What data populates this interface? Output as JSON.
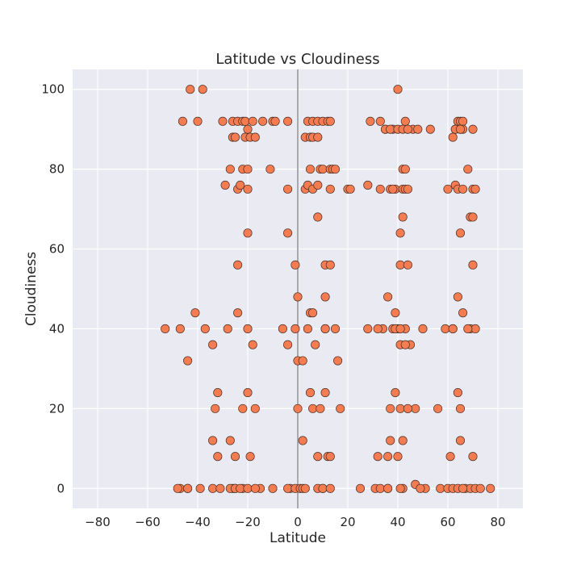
{
  "chart_data": {
    "type": "scatter",
    "title": "Latitude vs Cloudiness",
    "xlabel": "Latitude",
    "ylabel": "Cloudiness",
    "xlim": [
      -90,
      90
    ],
    "ylim": [
      -5,
      105
    ],
    "xticks": [
      -80,
      -60,
      -40,
      -20,
      0,
      20,
      40,
      60,
      80
    ],
    "yticks": [
      0,
      20,
      40,
      60,
      80,
      100
    ],
    "xtick_labels": [
      "−80",
      "−60",
      "−40",
      "−20",
      "0",
      "20",
      "40",
      "60",
      "80"
    ],
    "ytick_labels": [
      "0",
      "20",
      "40",
      "60",
      "80",
      "100"
    ],
    "grid": true,
    "vertical_reference_line_x": 0,
    "colors": {
      "background": "#eaeaf2",
      "point_fill": "#f47c50",
      "point_edge": "#4a3028",
      "grid": "#ffffff",
      "reference_line": "#a8a8ad"
    },
    "series": [
      {
        "x": [
          -43,
          -38,
          -46,
          -40,
          -30,
          -26,
          -24,
          -22,
          -21,
          -18,
          -14,
          -10,
          -9,
          -4,
          4,
          6,
          8,
          10,
          12,
          13,
          29,
          33,
          35,
          38,
          40,
          43,
          44,
          46,
          48,
          53,
          64,
          65,
          66,
          70,
          -26,
          -25,
          -21,
          -20,
          -19,
          -17,
          3,
          5,
          6,
          8,
          35,
          37,
          40,
          42,
          44,
          62,
          63,
          65,
          66,
          -27,
          -22,
          -20,
          -11,
          5,
          9,
          10,
          13,
          14,
          39,
          42,
          43,
          63,
          65,
          68,
          -29,
          -24,
          -23,
          -20,
          -4,
          3,
          4,
          6,
          8,
          13,
          20,
          28,
          33,
          37,
          38,
          42,
          43,
          44,
          60,
          63,
          64,
          66,
          70,
          71,
          -20,
          8,
          15,
          41,
          42,
          65,
          69,
          70,
          -24,
          -4,
          -1,
          11,
          13,
          41,
          44,
          70,
          0,
          5,
          6,
          11,
          21,
          36,
          39,
          40,
          41,
          43,
          45,
          64,
          66,
          -47,
          -37,
          -24,
          -1,
          0,
          2,
          4,
          11,
          15,
          34,
          38,
          62,
          69,
          71,
          -47,
          -44,
          -39,
          -26,
          -25,
          -22,
          -15,
          -3,
          -4,
          -1,
          10,
          -10,
          25,
          36,
          42,
          47,
          51,
          57,
          67,
          69,
          71,
          73,
          77,
          -48,
          -44,
          -34,
          -31,
          -27,
          -25,
          -23,
          -20,
          -17,
          1,
          2,
          3,
          8,
          10,
          13,
          31,
          33,
          36,
          41,
          49,
          60,
          62,
          64,
          66,
          -53,
          -41,
          -34,
          -28,
          -20,
          -18,
          -6,
          -4,
          7,
          11,
          16,
          28,
          32,
          39,
          41,
          43,
          50,
          59,
          62,
          68,
          -32,
          -20,
          -17,
          0,
          5,
          11,
          17,
          37,
          39,
          44,
          47,
          56,
          64,
          -44,
          -33,
          -22,
          6,
          9,
          41,
          44,
          65,
          -34,
          -27,
          -19,
          2,
          12,
          37,
          40,
          42,
          65,
          -32,
          -25,
          8,
          13,
          32,
          36,
          61,
          70
        ],
        "y": [
          100,
          100,
          92,
          92,
          92,
          92,
          92,
          92,
          92,
          92,
          92,
          92,
          92,
          92,
          92,
          92,
          92,
          92,
          92,
          92,
          92,
          92,
          90,
          90,
          100,
          92,
          90,
          90,
          90,
          90,
          92,
          92,
          92,
          90,
          88,
          88,
          88,
          90,
          88,
          88,
          88,
          88,
          88,
          88,
          90,
          90,
          90,
          90,
          90,
          88,
          90,
          90,
          90,
          80,
          80,
          80,
          80,
          80,
          80,
          80,
          80,
          80,
          75,
          80,
          80,
          90,
          90,
          80,
          76,
          75,
          76,
          75,
          75,
          75,
          76,
          75,
          76,
          75,
          75,
          76,
          75,
          75,
          75,
          75,
          75,
          75,
          75,
          76,
          75,
          75,
          75,
          75,
          64,
          68,
          80,
          64,
          68,
          64,
          68,
          68,
          56,
          64,
          56,
          56,
          56,
          56,
          56,
          56,
          48,
          44,
          44,
          48,
          75,
          48,
          44,
          40,
          36,
          40,
          36,
          48,
          44,
          40,
          40,
          44,
          40,
          32,
          32,
          40,
          40,
          40,
          40,
          40,
          40,
          40,
          40,
          0,
          0,
          0,
          0,
          0,
          0,
          0,
          0,
          0,
          0,
          0,
          0,
          0,
          0,
          0,
          1,
          0,
          0,
          0,
          0,
          0,
          0,
          0,
          0,
          0,
          0,
          0,
          0,
          0,
          0,
          0,
          0,
          0,
          0,
          0,
          0,
          0,
          0,
          0,
          0,
          0,
          0,
          0,
          0,
          0,
          0,
          0,
          40,
          44,
          36,
          40,
          40,
          36,
          40,
          36,
          36,
          40,
          32,
          40,
          40,
          40,
          40,
          36,
          40,
          40,
          40,
          40,
          24,
          24,
          20,
          20,
          24,
          24,
          20,
          20,
          24,
          20,
          20,
          20,
          24,
          32,
          20,
          20,
          20,
          20,
          20,
          20,
          20,
          12,
          12,
          8,
          12,
          8,
          12,
          8,
          12,
          12,
          8,
          8,
          8,
          8,
          8,
          8,
          8,
          8
        ]
      }
    ]
  }
}
